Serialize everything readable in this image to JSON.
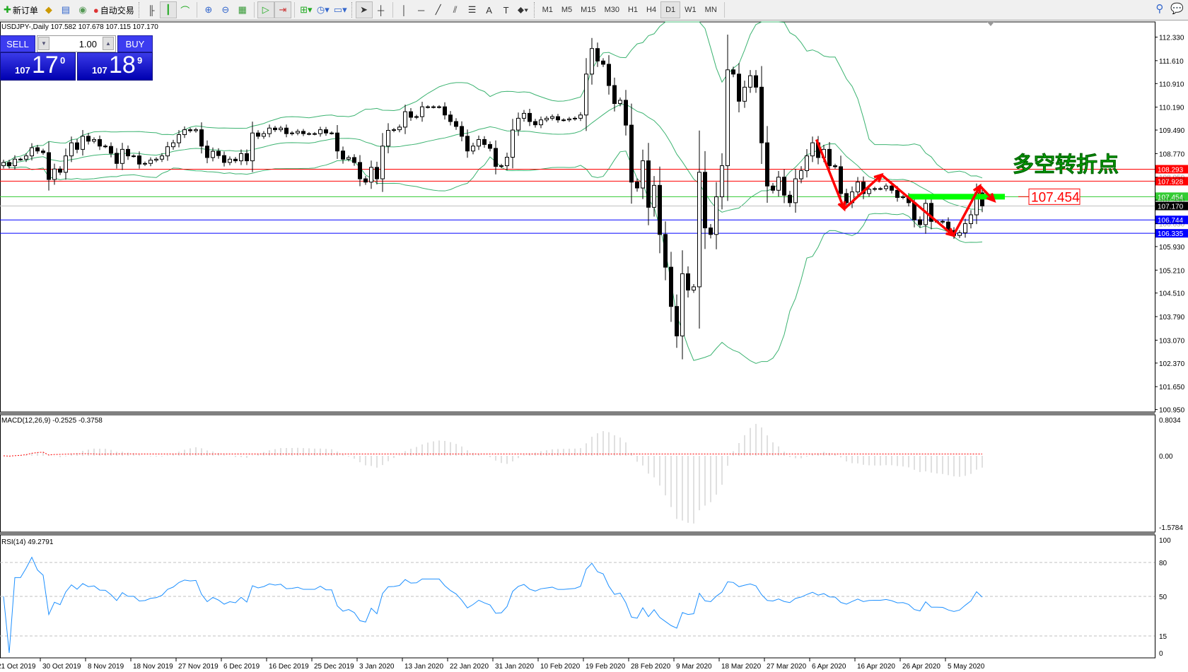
{
  "toolbar": {
    "new_order": "新订单",
    "auto_trading": "自动交易",
    "icons": [
      "new-order-icon",
      "market-watch-icon",
      "navigator-icon",
      "signals-icon",
      "auto-trading-icon",
      "bar-chart-icon",
      "candlestick-icon",
      "line-chart-icon",
      "zoom-in-icon",
      "zoom-out-icon",
      "tile-windows-icon",
      "auto-scroll-icon",
      "chart-shift-icon",
      "indicators-icon",
      "periods-icon",
      "templates-icon",
      "cursor-icon",
      "crosshair-icon",
      "vertical-line-icon",
      "horizontal-line-icon",
      "trendline-icon",
      "equidistant-channel-icon",
      "fibonacci-icon",
      "text-icon",
      "text-label-icon",
      "arrows-icon"
    ],
    "timeframes": [
      "M1",
      "M5",
      "M15",
      "M30",
      "H1",
      "H4",
      "D1",
      "W1",
      "MN"
    ],
    "active_timeframe": "D1"
  },
  "chart": {
    "title": "USDJPY-,Daily  107.582 107.678 107.115 107.170",
    "one_click": {
      "sell": "SELL",
      "buy": "BUY",
      "lot": "1.00",
      "bid_big": "107",
      "bid_main": "17",
      "bid_sup": "0",
      "ask_big": "107",
      "ask_main": "18",
      "ask_sup": "9"
    },
    "annotation_text": "多空转折点",
    "annotation_price": "107.454",
    "colors": {
      "bull": "#ffffff",
      "bear": "#000000",
      "bands": "#3cb371",
      "macd_hist": "#c0c0c0",
      "macd_signal": "#ff0000",
      "rsi": "#1e90ff",
      "annotation": "#ff0000",
      "zone": "#00ff00"
    }
  },
  "chart_data": {
    "type": "candlestick",
    "symbol": "USDJPY-",
    "period": "Daily",
    "close": [
      108.5,
      108.4,
      108.6,
      108.6,
      108.7,
      108.95,
      108.85,
      108.8,
      107.98,
      108.3,
      108.2,
      108.7,
      109.1,
      108.9,
      109.3,
      109.15,
      109.2,
      109.0,
      108.99,
      108.78,
      108.47,
      108.9,
      108.7,
      108.7,
      108.45,
      108.47,
      108.57,
      108.6,
      108.7,
      108.98,
      109.1,
      109.35,
      109.5,
      109.47,
      109.5,
      109.0,
      108.65,
      108.84,
      108.71,
      108.5,
      108.6,
      108.55,
      108.77,
      108.55,
      109.4,
      109.3,
      109.38,
      109.55,
      109.5,
      109.55,
      109.38,
      109.4,
      109.45,
      109.38,
      109.38,
      109.38,
      109.5,
      109.4,
      109.4,
      108.85,
      108.6,
      108.65,
      108.5,
      108.0,
      107.9,
      108.35,
      108.0,
      109.0,
      109.48,
      109.5,
      109.58,
      110.05,
      109.88,
      109.9,
      110.2,
      110.2,
      110.2,
      110.2,
      109.95,
      109.75,
      109.6,
      109.3,
      108.85,
      109.0,
      109.2,
      109.05,
      108.93,
      108.38,
      108.4,
      108.66,
      109.49,
      109.85,
      110.0,
      109.75,
      109.65,
      109.8,
      109.85,
      109.9,
      109.8,
      109.8,
      109.83,
      109.85,
      109.95,
      111.2,
      111.98,
      111.6,
      111.5,
      110.85,
      110.3,
      110.4,
      109.64,
      107.9,
      107.72,
      108.55,
      107.13,
      107.8,
      106.3,
      105.3,
      104.1,
      103.2,
      105.1,
      104.6,
      104.7,
      108.2,
      106.5,
      106.3,
      107.45,
      108.4,
      111.33,
      111.2,
      110.37,
      110.8,
      111.15,
      110.8,
      109.1,
      107.78,
      107.65,
      108.05,
      107.5,
      107.27,
      108.0,
      108.25,
      108.7,
      109.1,
      108.65,
      108.9,
      108.4,
      108.37,
      107.55,
      107.27,
      107.6,
      107.9,
      107.55,
      107.68,
      107.7,
      107.7,
      107.78,
      107.65,
      107.43,
      107.45,
      107.27,
      106.75,
      106.6,
      107.25,
      106.7,
      106.7,
      106.68,
      106.42,
      106.27,
      106.35,
      106.63,
      106.9,
      107.57,
      107.17
    ],
    "last_ohlc": {
      "open": 107.582,
      "high": 107.678,
      "low": 107.115,
      "close": 107.17
    },
    "x_labels": [
      {
        "bar": -1,
        "text": "21 Oct 2019"
      },
      {
        "bar": 7,
        "text": "30 Oct 2019"
      },
      {
        "bar": 15,
        "text": "8 Nov 2019"
      },
      {
        "bar": 23,
        "text": "18 Nov 2019"
      },
      {
        "bar": 31,
        "text": "27 Nov 2019"
      },
      {
        "bar": 39,
        "text": "6 Dec 2019"
      },
      {
        "bar": 47,
        "text": "16 Dec 2019"
      },
      {
        "bar": 55,
        "text": "25 Dec 2019"
      },
      {
        "bar": 63,
        "text": "3 Jan 2020"
      },
      {
        "bar": 71,
        "text": "13 Jan 2020"
      },
      {
        "bar": 79,
        "text": "22 Jan 2020"
      },
      {
        "bar": 87,
        "text": "31 Jan 2020"
      },
      {
        "bar": 95,
        "text": "10 Feb 2020"
      },
      {
        "bar": 103,
        "text": "19 Feb 2020"
      },
      {
        "bar": 111,
        "text": "28 Feb 2020"
      },
      {
        "bar": 119,
        "text": "9 Mar 2020"
      },
      {
        "bar": 127,
        "text": "18 Mar 2020"
      },
      {
        "bar": 135,
        "text": "27 Mar 2020"
      },
      {
        "bar": 143,
        "text": "6 Apr 2020"
      },
      {
        "bar": 151,
        "text": "16 Apr 2020"
      },
      {
        "bar": 159,
        "text": "26 Apr 2020"
      },
      {
        "bar": 167,
        "text": "5 May 2020"
      }
    ],
    "price_axis": {
      "range": [
        100.95,
        112.33
      ],
      "ticks": [
        "112.330",
        "111.610",
        "110.910",
        "110.190",
        "109.490",
        "108.770",
        "108.050",
        "107.350",
        "106.630",
        "105.930",
        "105.210",
        "104.510",
        "103.790",
        "103.070",
        "102.370",
        "101.650",
        "100.950"
      ]
    },
    "hlines": [
      {
        "price": 108.293,
        "label": "108.293",
        "color": "#ff0000"
      },
      {
        "price": 107.928,
        "label": "107.928",
        "color": "#ff0000"
      },
      {
        "price": 107.454,
        "label": "107.454",
        "color": "#33cc33"
      },
      {
        "price": 107.17,
        "label": "107.170",
        "color": "#c0c0c0",
        "label_bg": "#000000"
      },
      {
        "price": 106.744,
        "label": "106.744",
        "color": "#0000ff"
      },
      {
        "price": 106.335,
        "label": "106.335",
        "color": "#0000ff"
      }
    ],
    "zigzag": [
      {
        "bar": 143.7,
        "price": 109.2
      },
      {
        "bar": 148.6,
        "price": 107.08
      },
      {
        "bar": 155.2,
        "price": 108.12
      },
      {
        "bar": 167.9,
        "price": 106.27
      },
      {
        "bar": 172.6,
        "price": 107.78
      },
      {
        "bar": 175.1,
        "price": 107.33
      }
    ],
    "zone": {
      "from_bar": 160,
      "to_bar": 177,
      "price": 107.454
    },
    "bands": {
      "name": "Bollinger Bands",
      "period": 20,
      "deviation": 2
    },
    "macd": {
      "label": "MACD(12,26,9) -0.2525 -0.3758",
      "fast": 12,
      "slow": 26,
      "signal": 9,
      "range": [
        -1.5784,
        0.8034
      ],
      "ticks": [
        "0.8034",
        "0.00",
        "-1.5784"
      ]
    },
    "rsi": {
      "label": "RSI(14) 49.2791",
      "period": 14,
      "range": [
        0,
        100
      ],
      "levels": [
        80,
        50,
        15
      ],
      "ticks": [
        "100",
        "80",
        "50",
        "15",
        "0"
      ]
    }
  }
}
